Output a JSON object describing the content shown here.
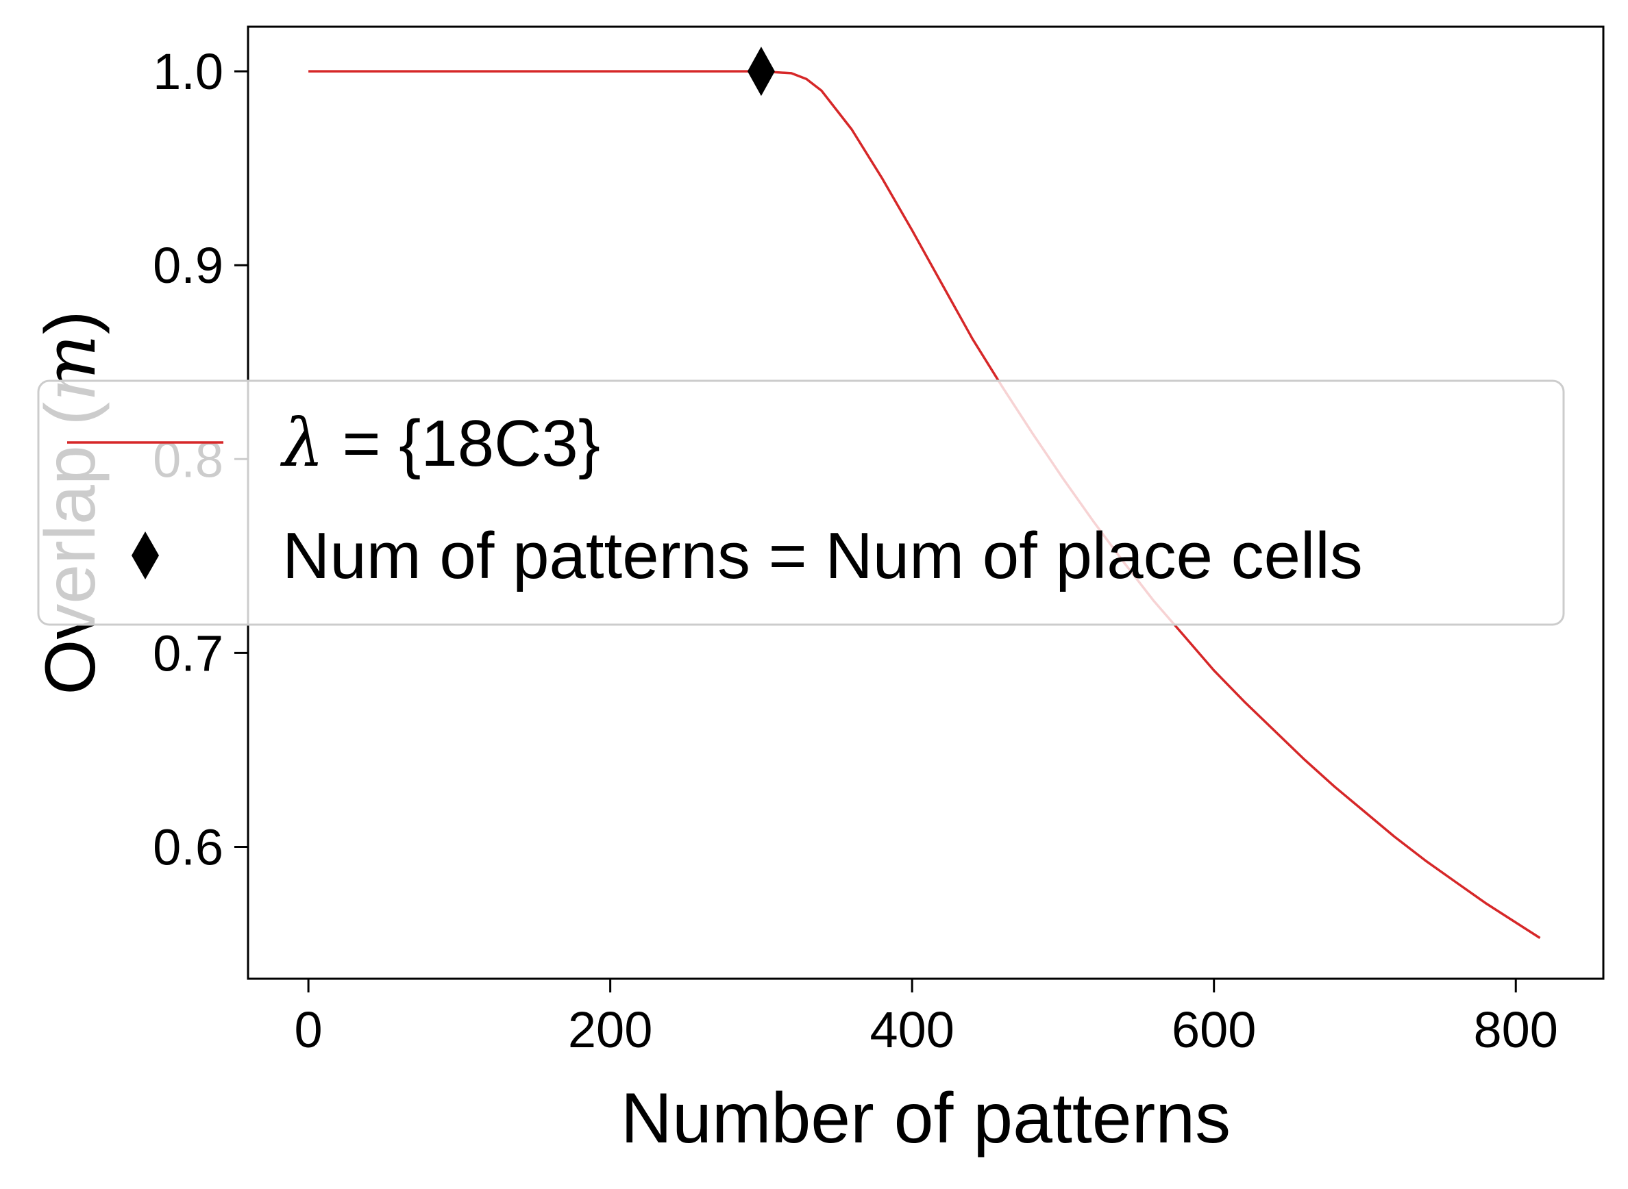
{
  "chart_data": {
    "type": "line",
    "title": "",
    "xlabel": "Number of patterns",
    "ylabel": "Overlap (m)",
    "ylabel_parts": {
      "text": "Overlap (",
      "symbol": "m",
      "close": ")"
    },
    "xlim": [
      -40,
      858
    ],
    "ylim": [
      0.532,
      1.023
    ],
    "xticks": [
      0,
      200,
      400,
      600,
      800
    ],
    "xtick_labels": [
      "0",
      "200",
      "400",
      "600",
      "800"
    ],
    "yticks": [
      0.6,
      0.7,
      0.8,
      0.9,
      1.0
    ],
    "ytick_labels": [
      "0.6",
      "0.7",
      "0.8",
      "0.9",
      "1.0"
    ],
    "grid": false,
    "legend_position": "center",
    "series": [
      {
        "name": "λ = {18C3}",
        "name_parts": {
          "symbol": "λ",
          "rest": " = {18C3}"
        },
        "color": "#d62728",
        "x": [
          0,
          100,
          200,
          300,
          320,
          330,
          340,
          360,
          380,
          400,
          420,
          440,
          460,
          480,
          500,
          520,
          540,
          560,
          580,
          600,
          620,
          640,
          660,
          680,
          700,
          720,
          740,
          760,
          780,
          800,
          816
        ],
        "y": [
          1.0,
          1.0,
          1.0,
          1.0,
          0.999,
          0.996,
          0.99,
          0.97,
          0.945,
          0.918,
          0.89,
          0.862,
          0.837,
          0.813,
          0.79,
          0.768,
          0.747,
          0.727,
          0.709,
          0.691,
          0.675,
          0.66,
          0.645,
          0.631,
          0.618,
          0.605,
          0.593,
          0.582,
          0.571,
          0.561,
          0.553
        ]
      },
      {
        "name": "Num of patterns = Num of place cells",
        "type": "marker",
        "marker": "thin-diamond",
        "color": "#000000",
        "x": [
          300
        ],
        "y": [
          1.0
        ]
      }
    ]
  }
}
